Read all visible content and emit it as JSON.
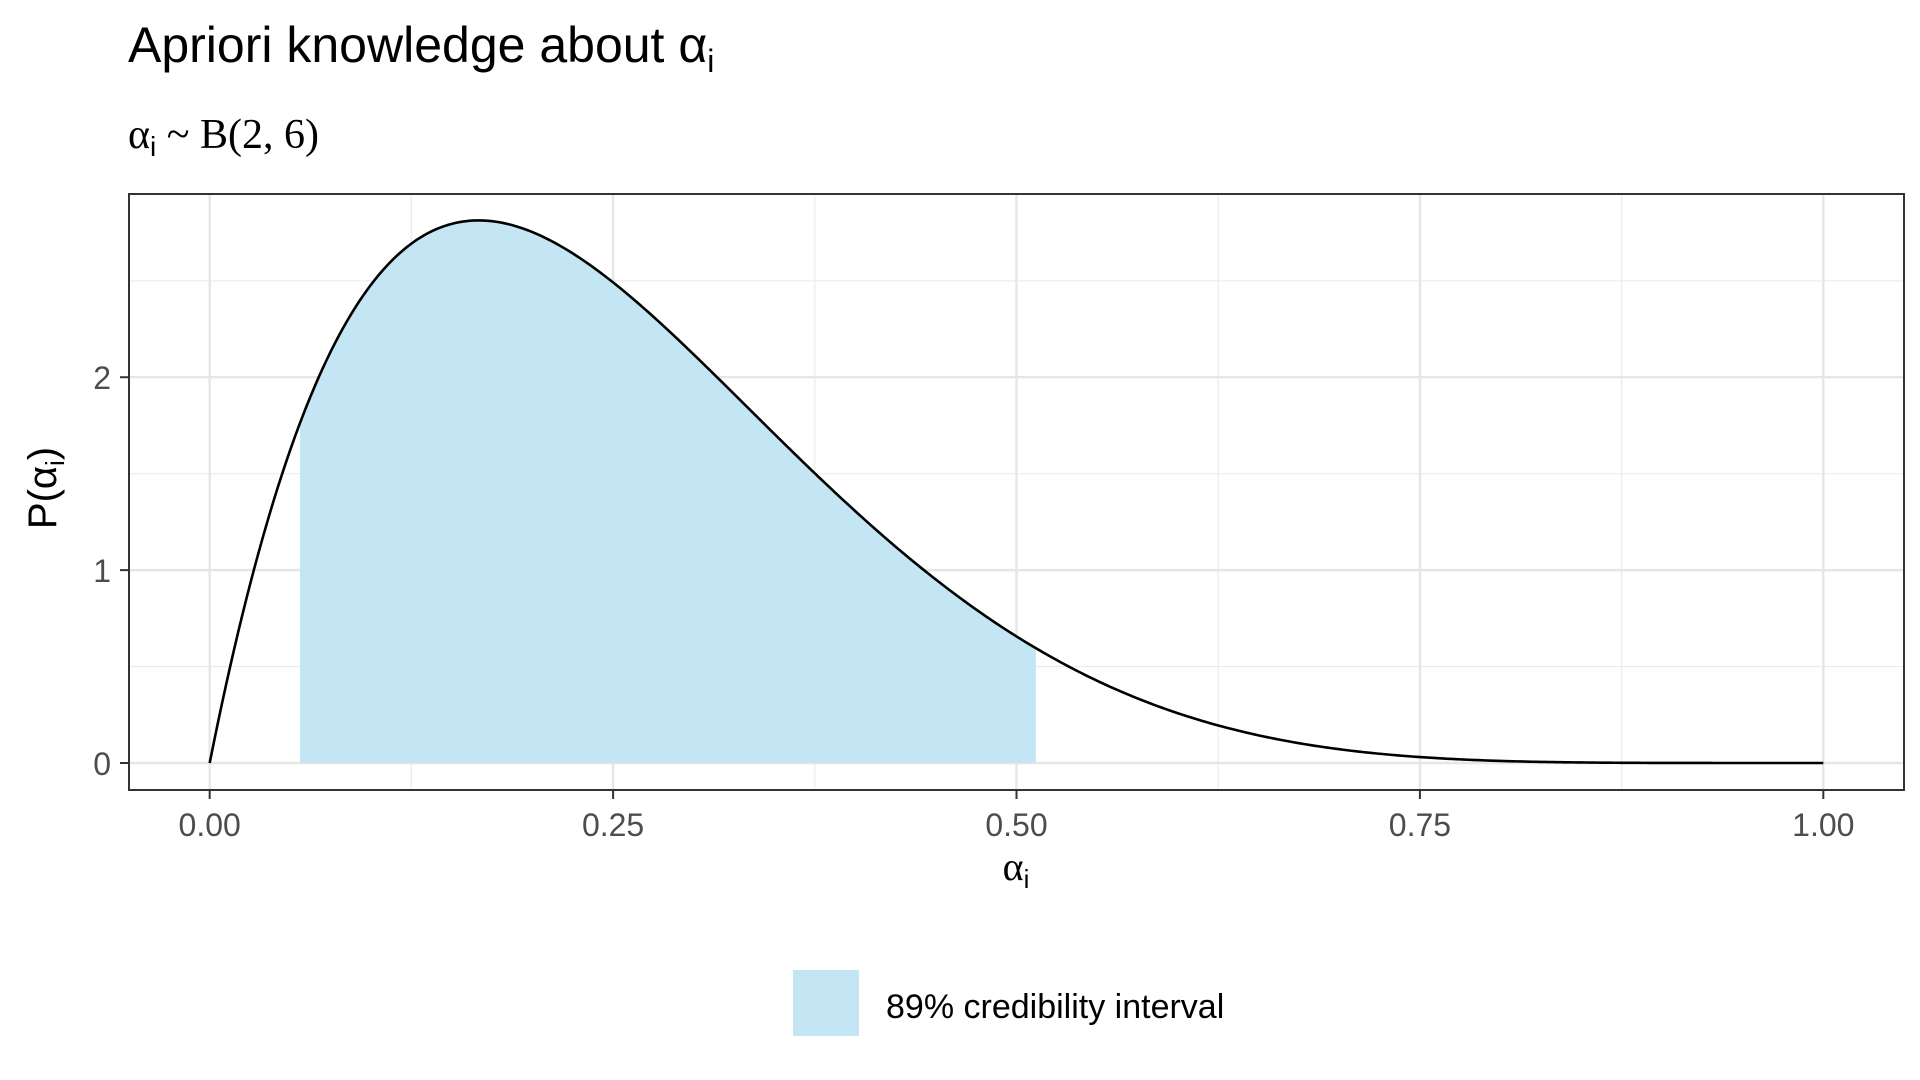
{
  "chart_data": {
    "type": "area",
    "title": "Apriori knowledge about α",
    "title_subscript": "i",
    "subtitle_symbol": "α",
    "subtitle_subscript": "i",
    "subtitle_rest": " ~ B(2, 6)",
    "xlabel": "α",
    "xlabel_subscript": "i",
    "ylabel": "P(α",
    "ylabel_subscript": "i",
    "ylabel_close": ")",
    "xlim": [
      -0.05,
      1.05
    ],
    "ylim": [
      -0.14,
      2.95
    ],
    "x_ticks": [
      0,
      0.25,
      0.5,
      0.75,
      1.0
    ],
    "x_tick_labels": [
      "0.00",
      "0.25",
      "0.50",
      "0.75",
      "1.00"
    ],
    "y_ticks": [
      0,
      1,
      2
    ],
    "y_tick_labels": [
      "0",
      "1",
      "2"
    ],
    "grid": true,
    "distribution": {
      "family": "beta",
      "alpha": 2,
      "beta": 6
    },
    "curve": {
      "x": [
        0,
        0.05,
        0.1,
        0.15,
        0.2,
        0.25,
        0.3,
        0.35,
        0.4,
        0.45,
        0.5,
        0.55,
        0.6,
        0.65,
        0.7,
        0.75,
        0.8,
        0.85,
        0.9,
        0.95,
        1.0
      ],
      "y": [
        0,
        1.629,
        2.48,
        2.773,
        2.753,
        2.492,
        2.118,
        1.7,
        1.306,
        0.955,
        0.656,
        0.426,
        0.258,
        0.144,
        0.073,
        0.033,
        0.013,
        0.004,
        0.001,
        0.0,
        0
      ],
      "color": "#000000"
    },
    "interval": {
      "label": "89% credibility interval",
      "lower": 0.056,
      "upper": 0.512,
      "color": "#c3e5f4"
    },
    "legend_position": "bottom"
  }
}
